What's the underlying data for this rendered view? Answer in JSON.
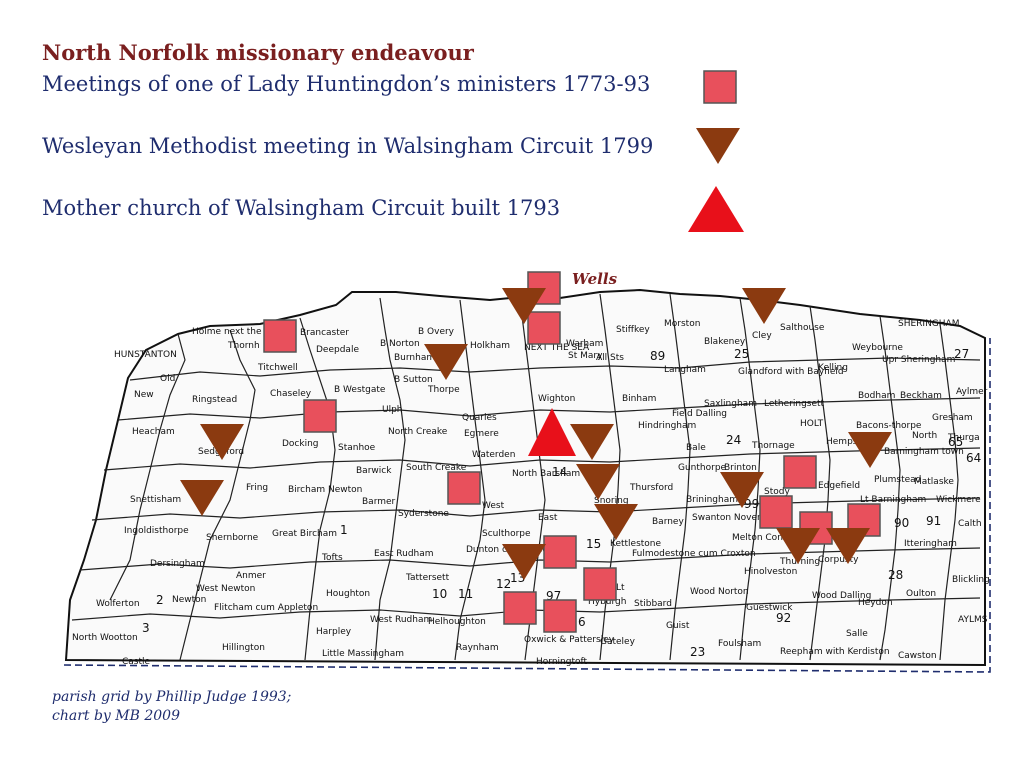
{
  "title": "North Norfolk missionary endeavour",
  "legend": {
    "huntingdon": "Meetings of one of Lady Huntingdon’s ministers 1773-93",
    "wesleyan": "Wesleyan Methodist meeting in Walsingham Circuit 1799",
    "mother": "Mother church of Walsingham Circuit built 1793"
  },
  "colors": {
    "square": "#e8505c",
    "down_triangle": "#8b3a10",
    "up_triangle": "#e8101a",
    "title": "#7a1f1f",
    "text": "#1f2d6e",
    "border": "#1f2d6e"
  },
  "wells_label": "Wells",
  "credit": {
    "line1": "parish grid by Phillip Judge 1993;",
    "line2": "chart by MB 2009"
  },
  "places": [
    "Holme next the sea",
    "Thornh",
    "Brancaster",
    "B Norton",
    "B Overy",
    "Holkham",
    "NEXT THE SEA",
    "Warham",
    "St Mary",
    "All Sts",
    "Stiffkey",
    "Morston",
    "Blakeney",
    "Cley",
    "Salthouse",
    "SHERINGHAM",
    "HUNSTANTON",
    "Titchwell",
    "Deepdale",
    "Burnham",
    "B Sutton",
    "Ulph",
    "Thorpe",
    "Chaseley",
    "B Westgate",
    "Old",
    "Hunstanton",
    "New",
    "Ringstead",
    "Heacham",
    "Docking",
    "Sedgeford",
    "North Creake",
    "Quarles",
    "Egmere",
    "Wighton",
    "Binham",
    "Field Dalling",
    "Langham",
    "Glandford with Bayfield",
    "Letheringsett",
    "Kelling",
    "Weybourne",
    "Upr Sheringham",
    "Bodham",
    "Beckham",
    "Aylmer",
    "Gresham",
    "Saxlingham",
    "HOLT",
    "Hempstead",
    "Bacons-thorpe",
    "North",
    "Barningham town",
    "Thurga",
    "Snettisham",
    "Fring",
    "Bircham Newton",
    "Stanhoe",
    "Barwick",
    "South Creake",
    "Waterden",
    "North Barsham",
    "Snoring",
    "Thursford",
    "Gunthorpe",
    "Brinton",
    "Thornage",
    "Bale",
    "Hindringham",
    "Plumstead",
    "Matlaske",
    "Wickmere",
    "Ingoldisthorpe",
    "Shernborne",
    "Great Bircham",
    "Tofts",
    "Barmer",
    "Syderstone",
    "West",
    "East",
    "Sculthorpe",
    "Kettlestone",
    "Barney",
    "Swanton Novers",
    "Melton Constable",
    "Briningham",
    "Stody",
    "Edgefield",
    "Lt Barningham",
    "Itteringham",
    "Calth",
    "Dersingham",
    "Anmer",
    "Tattersett",
    "Dunton cum Doughton",
    "East Rudham",
    "Houghton",
    "West Rudham",
    "Harpley",
    "Little Massingham",
    "Fulmodestone cum Croxton",
    "Hinolveston",
    "Thurning",
    "Corpusty",
    "Wood Norton",
    "Wood Dalling",
    "Heydon",
    "Guestwick",
    "Oulton",
    "Blickling",
    "Stibbard",
    "Guist",
    "Foulsham",
    "Reepham with Kerdiston",
    "Salle",
    "Cawston",
    "Wolferton",
    "Newton",
    "West Newton",
    "Flitcham cum Appleton",
    "Hillington",
    "North Wootton",
    "Castle",
    "Helhoughton",
    "Raynham",
    "Oxwick & Pattersley",
    "Horningtoft",
    "Hyburgh",
    "Lt",
    "Gateley",
    "AYLMS"
  ],
  "numbers": [
    "89",
    "25",
    "27",
    "65",
    "64",
    "24",
    "14",
    "99",
    "90",
    "91",
    "28",
    "15",
    "97",
    "1",
    "2",
    "3",
    "10",
    "11",
    "12",
    "13",
    "92",
    "23",
    "6"
  ]
}
